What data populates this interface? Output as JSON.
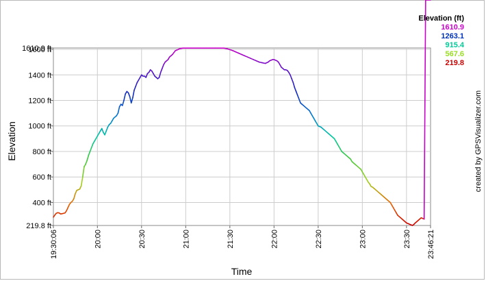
{
  "chart_data": {
    "type": "line",
    "xlabel": "Time",
    "ylabel": "Elevation",
    "credit": "created by GPSVisualizer.com",
    "grid": true,
    "legend": {
      "placement": "top-right",
      "title": "Elevation (ft)",
      "entries": [
        {
          "label": "1610.9",
          "color": "#cc00cc"
        },
        {
          "label": "1263.1",
          "color": "#0033bb"
        },
        {
          "label": "915.4",
          "color": "#00cc99"
        },
        {
          "label": "567.6",
          "color": "#99dd22"
        },
        {
          "label": "219.8",
          "color": "#cc0000"
        }
      ]
    },
    "xlim_minutes": [
      1170.1,
      1426.35
    ],
    "ylim": [
      219.8,
      1610.9
    ],
    "x_ticks": [
      {
        "label": "19:30:06",
        "minute": 1170.1,
        "rotated": true
      },
      {
        "label": "20:00",
        "minute": 1200,
        "rotated": true
      },
      {
        "label": "20:30",
        "minute": 1230,
        "rotated": true
      },
      {
        "label": "21:00",
        "minute": 1260,
        "rotated": true
      },
      {
        "label": "21:30",
        "minute": 1290,
        "rotated": true
      },
      {
        "label": "22:00",
        "minute": 1320,
        "rotated": true
      },
      {
        "label": "22:30",
        "minute": 1350,
        "rotated": true
      },
      {
        "label": "23:00",
        "minute": 1380,
        "rotated": true
      },
      {
        "label": "23:30",
        "minute": 1410,
        "rotated": true
      },
      {
        "label": "23:46:21",
        "minute": 1426.35,
        "rotated": true
      }
    ],
    "y_ticks": [
      {
        "label": "1610.9 ft",
        "value": 1610.9
      },
      {
        "label": "1600 ft",
        "value": 1600
      },
      {
        "label": "1400 ft",
        "value": 1400
      },
      {
        "label": "1200 ft",
        "value": 1200
      },
      {
        "label": "1000 ft",
        "value": 1000
      },
      {
        "label": "800 ft",
        "value": 800
      },
      {
        "label": "600 ft",
        "value": 600
      },
      {
        "label": "400 ft",
        "value": 400
      },
      {
        "label": "219.8 ft",
        "value": 219.8
      }
    ],
    "series": [
      {
        "time_minutes": [
          1170.1,
          1171,
          1172,
          1173,
          1174,
          1175,
          1176,
          1177,
          1178,
          1179,
          1180,
          1181,
          1182,
          1183,
          1184,
          1185,
          1186,
          1187,
          1188,
          1189,
          1190,
          1191,
          1192,
          1193,
          1194,
          1195,
          1196,
          1197,
          1198,
          1199,
          1200,
          1201,
          1202,
          1203,
          1204,
          1205,
          1206,
          1207,
          1208,
          1209,
          1210,
          1211,
          1212,
          1213,
          1214,
          1215,
          1216,
          1217,
          1218,
          1219,
          1220,
          1221,
          1222,
          1223,
          1224,
          1225,
          1226,
          1227,
          1228,
          1229,
          1230,
          1231,
          1232,
          1233,
          1234,
          1235,
          1236,
          1237,
          1238,
          1239,
          1240,
          1241,
          1242,
          1243,
          1244,
          1245,
          1246,
          1247,
          1248,
          1249,
          1250,
          1251,
          1252,
          1253,
          1254,
          1255,
          1256,
          1257,
          1258,
          1259,
          1260,
          1261,
          1262,
          1263,
          1264,
          1265,
          1266,
          1267,
          1268,
          1269,
          1270,
          1272,
          1274,
          1276,
          1278,
          1280,
          1282,
          1284,
          1286,
          1288,
          1290,
          1292,
          1294,
          1296,
          1298,
          1300,
          1302,
          1304,
          1306,
          1308,
          1310,
          1312,
          1314,
          1315,
          1316,
          1317,
          1318,
          1319,
          1320,
          1321,
          1322,
          1323,
          1324,
          1325,
          1326,
          1327,
          1328,
          1329,
          1330,
          1331,
          1332,
          1333,
          1334,
          1335,
          1336,
          1337,
          1338,
          1339,
          1340,
          1341,
          1342,
          1343,
          1344,
          1345,
          1346,
          1347,
          1348,
          1349,
          1350,
          1351,
          1352,
          1353,
          1354,
          1355,
          1356,
          1357,
          1358,
          1359,
          1360,
          1361,
          1362,
          1363,
          1364,
          1365,
          1366,
          1367,
          1368,
          1369,
          1370,
          1371,
          1372,
          1373,
          1374,
          1375,
          1376,
          1377,
          1378,
          1379,
          1380,
          1381,
          1382,
          1383,
          1384,
          1385,
          1386,
          1387,
          1388,
          1389,
          1390,
          1391,
          1392,
          1393,
          1394,
          1395,
          1396,
          1397,
          1398,
          1399,
          1400,
          1401,
          1402,
          1403,
          1404,
          1405,
          1406,
          1407,
          1408,
          1409,
          1410,
          1411,
          1412,
          1413,
          1414,
          1415,
          1416,
          1417,
          1418,
          1419,
          1420,
          1421,
          1422,
          1423,
          1424,
          1425,
          1426.35
        ],
        "elevation_ft": [
          285,
          300,
          315,
          320,
          318,
          310,
          312,
          315,
          318,
          335,
          360,
          385,
          400,
          410,
          430,
          470,
          495,
          500,
          505,
          530,
          600,
          680,
          700,
          730,
          770,
          800,
          830,
          860,
          880,
          900,
          920,
          940,
          960,
          980,
          950,
          930,
          960,
          990,
          1010,
          1020,
          1040,
          1060,
          1070,
          1080,
          1100,
          1150,
          1170,
          1160,
          1200,
          1250,
          1270,
          1260,
          1230,
          1180,
          1220,
          1280,
          1310,
          1340,
          1360,
          1380,
          1400,
          1390,
          1390,
          1380,
          1410,
          1420,
          1440,
          1430,
          1410,
          1390,
          1380,
          1370,
          1380,
          1420,
          1450,
          1480,
          1500,
          1510,
          1520,
          1540,
          1550,
          1560,
          1575,
          1590,
          1595,
          1600,
          1605,
          1608,
          1610,
          1610,
          1610,
          1610,
          1610,
          1610,
          1610,
          1610,
          1610,
          1610,
          1610,
          1610,
          1610,
          1610,
          1610,
          1610,
          1610,
          1610,
          1610,
          1610,
          1610,
          1605,
          1598,
          1590,
          1580,
          1570,
          1560,
          1550,
          1540,
          1530,
          1520,
          1510,
          1500,
          1495,
          1490,
          1495,
          1500,
          1510,
          1515,
          1520,
          1520,
          1515,
          1510,
          1500,
          1480,
          1460,
          1450,
          1440,
          1440,
          1435,
          1420,
          1400,
          1370,
          1340,
          1300,
          1270,
          1240,
          1210,
          1180,
          1170,
          1160,
          1150,
          1140,
          1130,
          1120,
          1100,
          1080,
          1060,
          1040,
          1020,
          1000,
          995,
          990,
          980,
          970,
          960,
          950,
          940,
          930,
          920,
          910,
          900,
          880,
          860,
          840,
          820,
          800,
          790,
          780,
          770,
          760,
          750,
          740,
          720,
          710,
          700,
          690,
          680,
          670,
          660,
          640,
          620,
          600,
          580,
          560,
          545,
          525,
          520,
          510,
          500,
          490,
          480,
          470,
          460,
          450,
          440,
          430,
          420,
          410,
          400,
          380,
          360,
          340,
          320,
          300,
          290,
          280,
          270,
          260,
          250,
          240,
          235,
          230,
          225,
          220,
          228,
          240,
          250,
          260,
          270,
          280,
          275,
          270
        ]
      }
    ]
  }
}
